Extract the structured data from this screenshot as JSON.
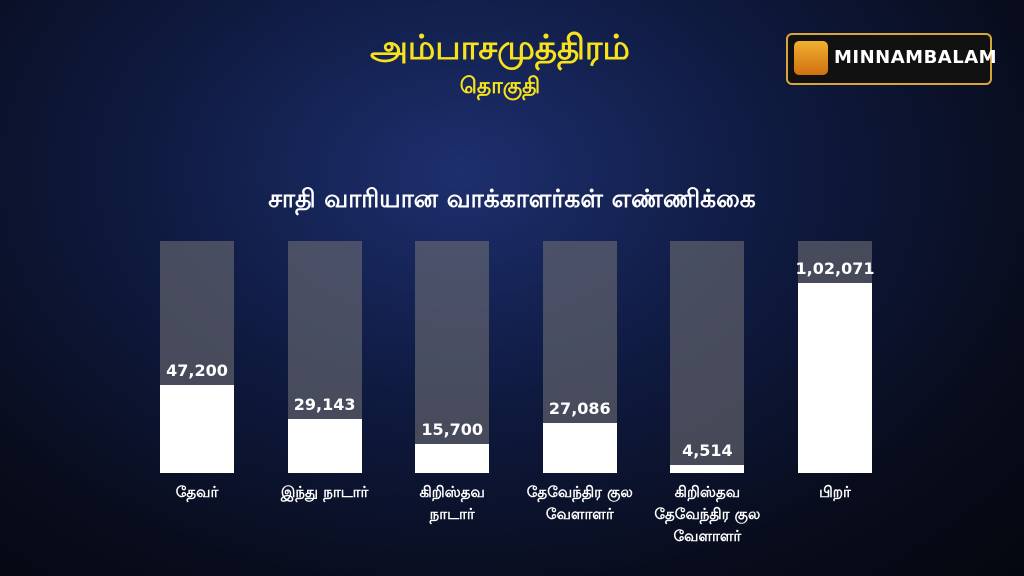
{
  "brand": "MINNAMBALAM",
  "chart_data": {
    "type": "bar",
    "title": "அம்பாசமுத்திரம்",
    "subtitle": "தொகுதி",
    "heading": "சாதி வாரியான வாக்காளர்கள்  எண்ணிக்கை",
    "categories": [
      "தேவர்",
      "இந்து நாடார்",
      "கிறிஸ்தவ நாடார்",
      "தேவேந்திர குல வேளாளர்",
      "கிறிஸ்தவ தேவேந்திர குல வேளாளர்",
      "பிறர்"
    ],
    "values": [
      47200,
      29143,
      15700,
      27086,
      4514,
      102071
    ],
    "value_labels": [
      "47,200",
      "29,143",
      "15,700",
      "27,086",
      "4,514",
      "1,02,071"
    ],
    "color": "#ffffff"
  }
}
